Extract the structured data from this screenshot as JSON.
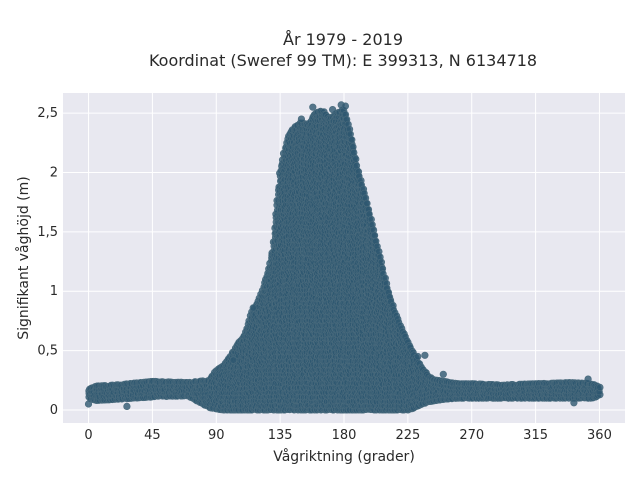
{
  "chart_data": {
    "type": "scatter",
    "title_lines": [
      "År 1979 - 2019",
      "Koordinat (Sweref 99 TM): E 399313, N 6134718"
    ],
    "xlabel": "Vågriktning (grader)",
    "ylabel": "Signifikant våghöjd (m)",
    "xlim": [
      -18,
      378
    ],
    "ylim": [
      -0.11,
      2.67
    ],
    "x_ticks": [
      0,
      45,
      90,
      135,
      180,
      225,
      270,
      315,
      360
    ],
    "x_tick_labels": [
      "0",
      "45",
      "90",
      "135",
      "180",
      "225",
      "270",
      "315",
      "360"
    ],
    "y_ticks": [
      0,
      0.5,
      1,
      1.5,
      2,
      2.5
    ],
    "y_tick_labels": [
      "0",
      "0,5",
      "1",
      "1,5",
      "2",
      "2,5"
    ],
    "grid": true,
    "legend": "none",
    "colors": {
      "marker": "#2e5870",
      "marker_edge": "#4a6b7d",
      "plot_background": "#e8e8f0",
      "grid": "#ffffff"
    },
    "marker_opacity": 0.8,
    "envelope": {
      "x": [
        0,
        5,
        20,
        45,
        70,
        85,
        90,
        95,
        100,
        105,
        110,
        115,
        120,
        125,
        130,
        135,
        138,
        140,
        145,
        150,
        155,
        160,
        165,
        170,
        175,
        180,
        185,
        190,
        195,
        200,
        205,
        210,
        215,
        220,
        225,
        230,
        235,
        240,
        245,
        250,
        260,
        270,
        290,
        315,
        340,
        355,
        360
      ],
      "y_max": [
        0.17,
        0.2,
        0.21,
        0.24,
        0.23,
        0.25,
        0.33,
        0.37,
        0.45,
        0.55,
        0.63,
        0.82,
        0.92,
        1.1,
        1.35,
        2.0,
        2.18,
        2.28,
        2.38,
        2.42,
        2.4,
        2.5,
        2.52,
        2.45,
        2.5,
        2.53,
        2.3,
        2.0,
        1.8,
        1.55,
        1.3,
        1.05,
        0.85,
        0.7,
        0.57,
        0.45,
        0.35,
        0.28,
        0.25,
        0.24,
        0.22,
        0.22,
        0.21,
        0.22,
        0.23,
        0.22,
        0.19
      ],
      "y_min": [
        0.1,
        0.08,
        0.09,
        0.11,
        0.12,
        0.02,
        0.01,
        0,
        0,
        0,
        0,
        0,
        0,
        0,
        0,
        0,
        0,
        0,
        0,
        0,
        0,
        0,
        0,
        0,
        0,
        0,
        0,
        0,
        0,
        0,
        0,
        0,
        0,
        0,
        0,
        0.02,
        0.05,
        0.07,
        0.08,
        0.09,
        0.1,
        0.1,
        0.1,
        0.1,
        0.1,
        0.1,
        0.12
      ]
    },
    "outliers": [
      {
        "x": 0,
        "y": 0.05
      },
      {
        "x": 27,
        "y": 0.03
      },
      {
        "x": 102,
        "y": 0.42
      },
      {
        "x": 116,
        "y": 0.86
      },
      {
        "x": 150,
        "y": 2.45
      },
      {
        "x": 158,
        "y": 2.55
      },
      {
        "x": 172,
        "y": 2.53
      },
      {
        "x": 178,
        "y": 2.57
      },
      {
        "x": 181,
        "y": 2.56
      },
      {
        "x": 232,
        "y": 0.45
      },
      {
        "x": 237,
        "y": 0.46
      },
      {
        "x": 250,
        "y": 0.3
      },
      {
        "x": 342,
        "y": 0.06
      },
      {
        "x": 352,
        "y": 0.26
      }
    ]
  }
}
